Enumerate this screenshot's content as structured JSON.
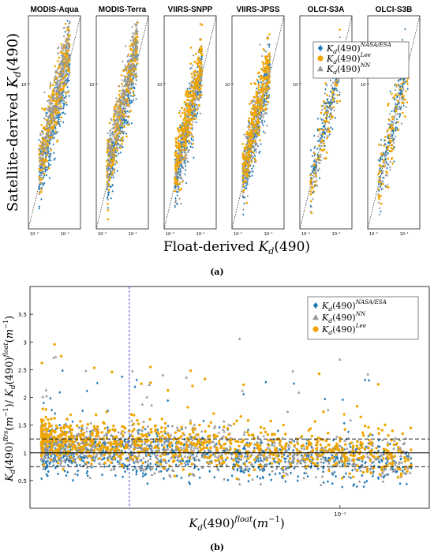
{
  "colors": {
    "nasa_esa": "#1f77b4",
    "lee": "#f0a500",
    "nn": "#999999",
    "reference_line": "#333333",
    "vertical_line": "#3b3bd6"
  },
  "captions": {
    "a": "(a)",
    "b": "(b)"
  },
  "chart_data": [
    {
      "type": "scatter",
      "panel": "a",
      "ylabel": "Satellite-derived Kd(490)",
      "xlabel": "Float-derived Kd(490)",
      "scale": "log",
      "xlim": [
        0.01,
        0.3
      ],
      "ylim": [
        0.01,
        0.3
      ],
      "xticks": [
        "10⁻²",
        "10⁻¹"
      ],
      "yticks": [
        "10⁻¹"
      ],
      "reference_line": "1:1 dotted",
      "legend": {
        "placement": "top-right",
        "entries": [
          "Kd(490)NASA/ESA",
          "Kd(490)Lee",
          "Kd(490)NN"
        ]
      },
      "subplots": [
        {
          "title": "MODIS-Aqua",
          "x_range": [
            0.02,
            0.15
          ],
          "median_ratio": 1.15
        },
        {
          "title": "MODIS-Terra",
          "x_range": [
            0.02,
            0.15
          ],
          "median_ratio": 1.15
        },
        {
          "title": "VIIRS-SNPP",
          "x_range": [
            0.02,
            0.12
          ],
          "median_ratio": 1.1
        },
        {
          "title": "VIIRS-JPSS",
          "x_range": [
            0.02,
            0.12
          ],
          "median_ratio": 1.1
        },
        {
          "title": "OLCI-S3A",
          "x_range": [
            0.02,
            0.14
          ],
          "median_ratio": 1.0
        },
        {
          "title": "OLCI-S3B",
          "x_range": [
            0.02,
            0.14
          ],
          "median_ratio": 1.0
        }
      ]
    },
    {
      "type": "scatter",
      "panel": "b",
      "xlabel": "Kd(490)float (m⁻¹)",
      "ylabel": "Kd(490)Rrs(m⁻¹)/ Kd(490)float(m⁻¹)",
      "xscale": "log",
      "xlim": [
        0.013,
        0.18
      ],
      "ylim": [
        0,
        4
      ],
      "yticks": [
        0.5,
        1,
        1.5,
        2,
        2.5,
        3,
        3.5
      ],
      "xtick_label": "10⁻¹",
      "hlines": {
        "solid": 1.0,
        "dashed": [
          0.75,
          1.25
        ]
      },
      "vline": 0.025,
      "legend": {
        "placement": "top-right",
        "entries": [
          "Kd(490)NASA/ESA",
          "Kd(490)NN",
          "Kd(490)Lee"
        ]
      },
      "series": [
        {
          "name": "Kd(490)NASA/ESA",
          "x_range": [
            0.014,
            0.16
          ],
          "median": 1.05
        },
        {
          "name": "Kd(490)NN",
          "x_range": [
            0.014,
            0.16
          ],
          "median": 1.15
        },
        {
          "name": "Kd(490)Lee",
          "x_range": [
            0.014,
            0.16
          ],
          "median": 1.25
        }
      ]
    }
  ]
}
